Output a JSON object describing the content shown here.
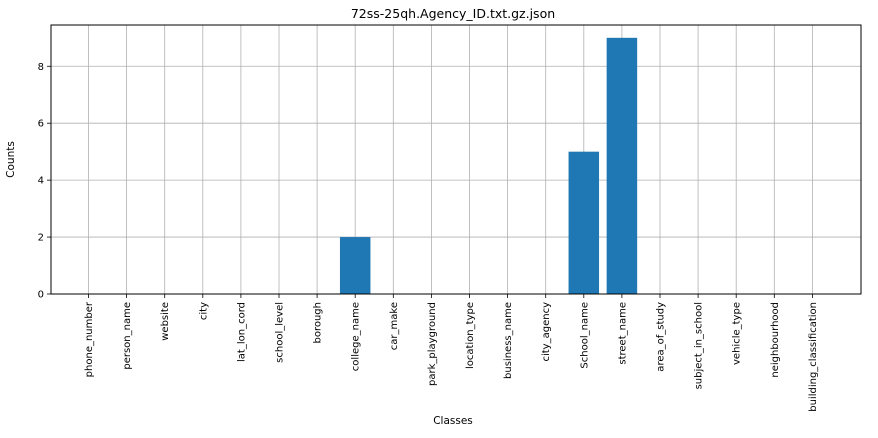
{
  "chart_data": {
    "type": "bar",
    "title": "72ss-25qh.Agency_ID.txt.gz.json",
    "xlabel": "Classes",
    "ylabel": "Counts",
    "categories": [
      "phone_number",
      "person_name",
      "website",
      "city",
      "lat_lon_cord",
      "school_level",
      "borough",
      "college_name",
      "car_make",
      "park_playground",
      "location_type",
      "business_name",
      "city_agency",
      "School_name",
      "street_name",
      "area_of_study",
      "subject_in_school",
      "vehicle_type",
      "neighbourhood",
      "building_classification"
    ],
    "values": [
      0,
      0,
      0,
      0,
      0,
      0,
      0,
      2,
      0,
      0,
      0,
      0,
      0,
      5,
      9,
      0,
      0,
      0,
      0,
      0
    ],
    "ylim": [
      0,
      9.45
    ],
    "yticks": [
      0,
      2,
      4,
      6,
      8
    ],
    "grid": true,
    "bar_color": "#1f77b4"
  }
}
